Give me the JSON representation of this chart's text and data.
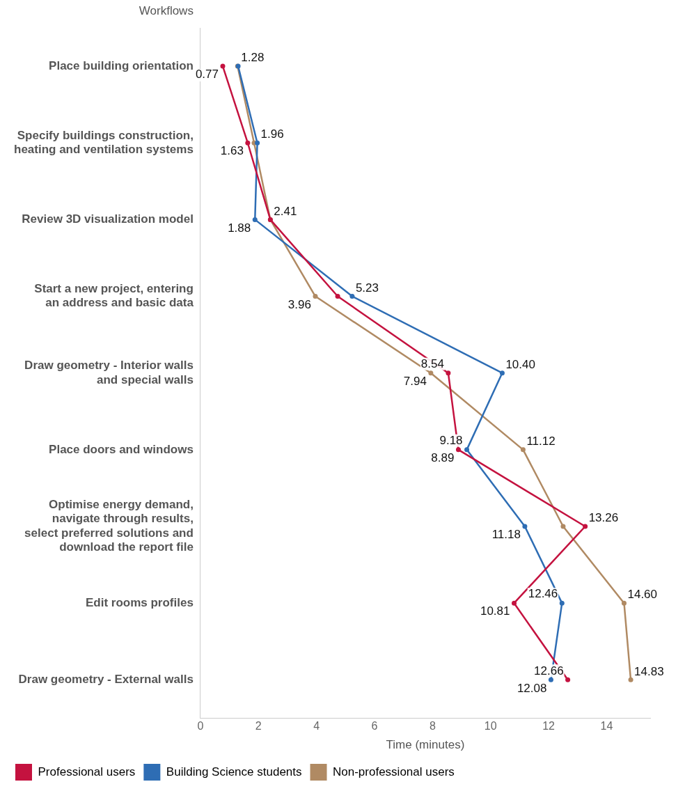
{
  "chart_data": {
    "type": "line",
    "orientation": "horizontal",
    "ylabel": "Workflows",
    "xlabel": "Time (minutes)",
    "categories": [
      "Place building orientation",
      "Specify buildings construction, heating and ventilation systems",
      "Review 3D visualization model",
      "Start a new project, entering an address and basic data",
      "Draw geometry - Interior walls and special walls",
      "Place doors and windows",
      "Optimise energy demand, navigate through results, select preferred solutions and download the report file",
      "Edit rooms profiles",
      "Draw geometry - External walls"
    ],
    "series": [
      {
        "name": "Professional users",
        "color": "#c4123f",
        "values": [
          0.77,
          1.63,
          2.41,
          4.73,
          8.54,
          8.89,
          13.26,
          10.81,
          12.66
        ],
        "value_labels": [
          "0.77",
          "1.63",
          "2.41",
          null,
          "8.54",
          "8.89",
          "13.26",
          "10.81",
          "12.66"
        ]
      },
      {
        "name": "Building Science students",
        "color": "#2e6db4",
        "values": [
          1.3,
          1.96,
          1.88,
          5.23,
          10.4,
          9.18,
          11.18,
          12.46,
          12.08
        ],
        "value_labels": [
          null,
          "1.96",
          "1.88",
          "5.23",
          "10.40",
          "9.18",
          "11.18",
          "12.46",
          "12.08"
        ]
      },
      {
        "name": "Non-professional users",
        "color": "#b08a63",
        "values": [
          1.28,
          1.85,
          2.41,
          3.96,
          7.94,
          11.12,
          12.5,
          14.6,
          14.83
        ],
        "value_labels": [
          "1.28",
          null,
          null,
          "3.96",
          "7.94",
          "11.12",
          null,
          "14.60",
          "14.83"
        ]
      }
    ],
    "xlim": [
      0,
      15.5
    ],
    "xticks": [
      0,
      2,
      4,
      6,
      8,
      10,
      12,
      14
    ],
    "grid": false,
    "legend": "bottom left",
    "marker": "circle",
    "line_style": "solid"
  }
}
